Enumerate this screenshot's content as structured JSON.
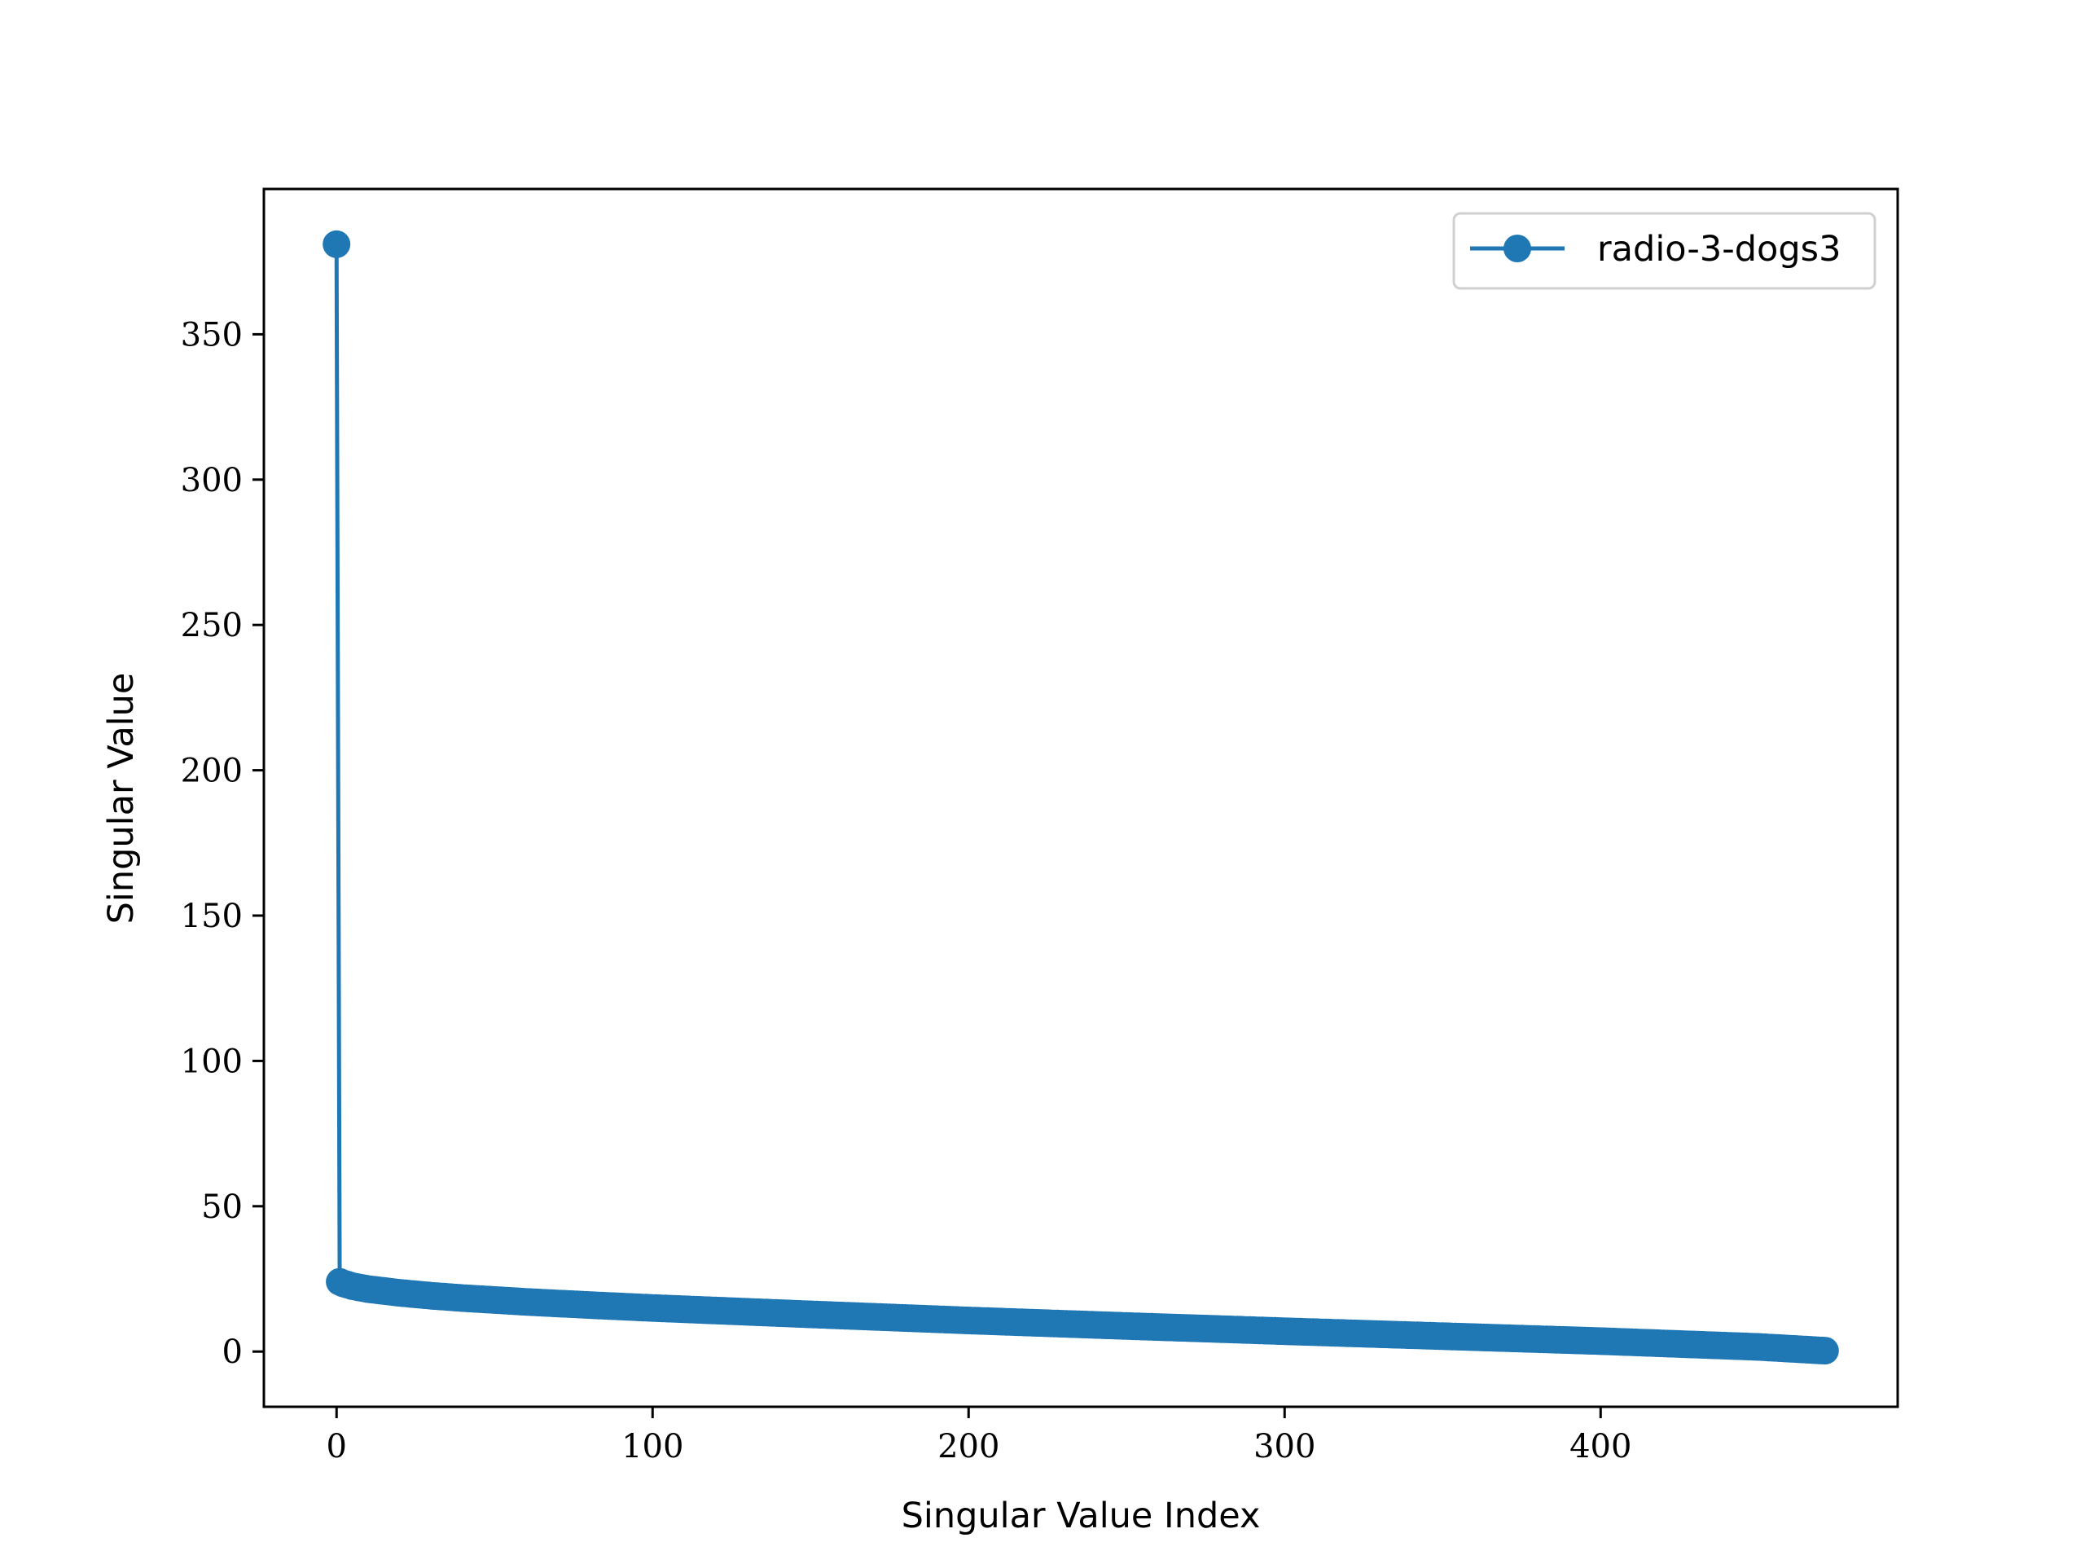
{
  "chart_data": {
    "type": "line",
    "title": "",
    "xlabel": "Singular Value Index",
    "ylabel": "Singular Value",
    "xlim": [
      -23,
      494
    ],
    "ylim": [
      -19,
      400
    ],
    "xticks": [
      "0",
      "100",
      "200",
      "300",
      "400"
    ],
    "yticks": [
      "0",
      "50",
      "100",
      "150",
      "200",
      "250",
      "300",
      "350"
    ],
    "grid": false,
    "legend_position": "top-right",
    "series": [
      {
        "name": "radio-3-dogs3",
        "color": "#1f77b4",
        "marker": "circle",
        "count": 472,
        "x": [
          0,
          1,
          2,
          5,
          10,
          20,
          30,
          40,
          60,
          80,
          100,
          150,
          200,
          250,
          300,
          350,
          400,
          450,
          471
        ],
        "values": [
          381,
          24,
          23.5,
          22.5,
          21.5,
          20.2,
          19.2,
          18.4,
          17.1,
          16.0,
          15.0,
          12.8,
          10.7,
          8.8,
          7.0,
          5.3,
          3.6,
          1.6,
          0.3
        ]
      }
    ]
  }
}
